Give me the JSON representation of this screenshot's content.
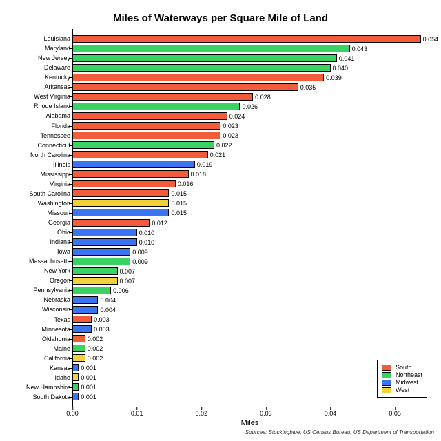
{
  "chart": {
    "type": "bar-horizontal",
    "title": "Miles of Waterways per Square Mile of Land",
    "title_fontsize": 15,
    "background_color": "#ffffff",
    "bar_border_color": "#000000",
    "xlim": [
      0.0,
      0.055
    ],
    "x_ticks": [
      0.0,
      0.01,
      0.02,
      0.03,
      0.04,
      0.05
    ],
    "x_tick_labels": [
      "0.00",
      "0.01",
      "0.02",
      "0.03",
      "0.04",
      "0.05"
    ],
    "x_label": "Miles",
    "label_fontsize": 9,
    "region_colors": {
      "South": "#f25c3b",
      "Northeast": "#3bd264",
      "Midwest": "#3b74f2",
      "West": "#f2d23b"
    },
    "legend": {
      "items": [
        {
          "label": "South",
          "color": "#f25c3b"
        },
        {
          "label": "Northeast",
          "color": "#3bd264"
        },
        {
          "label": "Midwest",
          "color": "#3b74f2"
        },
        {
          "label": "West",
          "color": "#f2d23b"
        }
      ]
    },
    "data": [
      {
        "state": "Louisiana",
        "value": 0.054,
        "label": "0.054",
        "region": "South"
      },
      {
        "state": "Maryland",
        "value": 0.043,
        "label": "0.043",
        "region": "Northeast"
      },
      {
        "state": "New Jersey",
        "value": 0.041,
        "label": "0.041",
        "region": "Northeast"
      },
      {
        "state": "Delaware",
        "value": 0.04,
        "label": "0.040",
        "region": "Northeast"
      },
      {
        "state": "Kentucky",
        "value": 0.039,
        "label": "0.039",
        "region": "South"
      },
      {
        "state": "Arkansas",
        "value": 0.035,
        "label": "0.035",
        "region": "South"
      },
      {
        "state": "West Virginia",
        "value": 0.028,
        "label": "0.028",
        "region": "South"
      },
      {
        "state": "Rhode Island",
        "value": 0.026,
        "label": "0.026",
        "region": "Northeast"
      },
      {
        "state": "Alabama",
        "value": 0.024,
        "label": "0.024",
        "region": "South"
      },
      {
        "state": "Florida",
        "value": 0.023,
        "label": "0.023",
        "region": "South"
      },
      {
        "state": "Tennessee",
        "value": 0.023,
        "label": "0.023",
        "region": "South"
      },
      {
        "state": "Connecticut",
        "value": 0.022,
        "label": "0.022",
        "region": "Northeast"
      },
      {
        "state": "North Carolina",
        "value": 0.021,
        "label": "0.021",
        "region": "South"
      },
      {
        "state": "Illinois",
        "value": 0.019,
        "label": "0.019",
        "region": "Midwest"
      },
      {
        "state": "Mississippi",
        "value": 0.018,
        "label": "0.018",
        "region": "South"
      },
      {
        "state": "Virginia",
        "value": 0.016,
        "label": "0.016",
        "region": "South"
      },
      {
        "state": "South Carolina",
        "value": 0.015,
        "label": "0.015",
        "region": "South"
      },
      {
        "state": "Washington",
        "value": 0.015,
        "label": "0.015",
        "region": "West"
      },
      {
        "state": "Missouri",
        "value": 0.015,
        "label": "0.015",
        "region": "Midwest"
      },
      {
        "state": "Georgia",
        "value": 0.012,
        "label": "0.012",
        "region": "South"
      },
      {
        "state": "Ohio",
        "value": 0.01,
        "label": "0.010",
        "region": "Midwest"
      },
      {
        "state": "Indiana",
        "value": 0.01,
        "label": "0.010",
        "region": "Midwest"
      },
      {
        "state": "Iowa",
        "value": 0.009,
        "label": "0.009",
        "region": "Midwest"
      },
      {
        "state": "Massachusetts",
        "value": 0.009,
        "label": "0.009",
        "region": "Northeast"
      },
      {
        "state": "New York",
        "value": 0.007,
        "label": "0.007",
        "region": "Northeast"
      },
      {
        "state": "Oregon",
        "value": 0.007,
        "label": "0.007",
        "region": "West"
      },
      {
        "state": "Pennsylvania",
        "value": 0.006,
        "label": "0.006",
        "region": "Northeast"
      },
      {
        "state": "Nebraska",
        "value": 0.004,
        "label": "0.004",
        "region": "Midwest"
      },
      {
        "state": "Wisconsin",
        "value": 0.004,
        "label": "0.004",
        "region": "Midwest"
      },
      {
        "state": "Texas",
        "value": 0.003,
        "label": "0.003",
        "region": "South"
      },
      {
        "state": "Minnesota",
        "value": 0.003,
        "label": "0.003",
        "region": "Midwest"
      },
      {
        "state": "Oklahoma",
        "value": 0.002,
        "label": "0.002",
        "region": "South"
      },
      {
        "state": "Maine",
        "value": 0.002,
        "label": "0.002",
        "region": "Northeast"
      },
      {
        "state": "California",
        "value": 0.002,
        "label": "0.002",
        "region": "West"
      },
      {
        "state": "Kansas",
        "value": 0.001,
        "label": "0.001",
        "region": "Midwest"
      },
      {
        "state": "Idaho",
        "value": 0.001,
        "label": "0.001",
        "region": "West"
      },
      {
        "state": "New Hampshire",
        "value": 0.001,
        "label": "0.001",
        "region": "Northeast"
      },
      {
        "state": "South Dakota",
        "value": 0.001,
        "label": "0.001",
        "region": "Midwest"
      }
    ],
    "sources": "Sources: Stockingblue, US Census Bureau, US Department of Transportation"
  }
}
